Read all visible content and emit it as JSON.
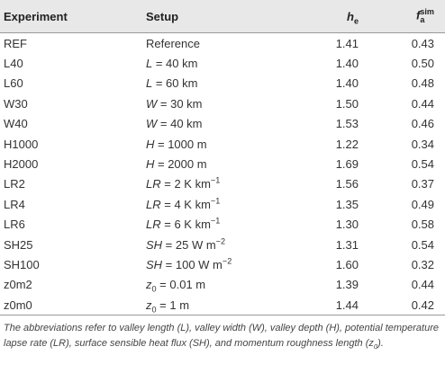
{
  "table": {
    "header": {
      "experiment": "Experiment",
      "setup": "Setup",
      "h_e": [
        {
          "italic": "h"
        },
        {
          "sub": "e"
        }
      ],
      "f_a_sim": [
        {
          "italic": "f"
        },
        {
          "sub": "a",
          "sup": "sim"
        }
      ]
    },
    "rows": [
      {
        "experiment": "REF",
        "setup": [
          {
            "text": "Reference"
          }
        ],
        "h_e": "1.41",
        "f_a_sim": "0.43"
      },
      {
        "experiment": "L40",
        "setup": [
          {
            "italic": "L"
          },
          {
            "text": " = 40 km"
          }
        ],
        "h_e": "1.40",
        "f_a_sim": "0.50"
      },
      {
        "experiment": "L60",
        "setup": [
          {
            "italic": "L"
          },
          {
            "text": " = 60 km"
          }
        ],
        "h_e": "1.40",
        "f_a_sim": "0.48"
      },
      {
        "experiment": "W30",
        "setup": [
          {
            "italic": "W"
          },
          {
            "text": " = 30 km"
          }
        ],
        "h_e": "1.50",
        "f_a_sim": "0.44"
      },
      {
        "experiment": "W40",
        "setup": [
          {
            "italic": "W"
          },
          {
            "text": " = 40 km"
          }
        ],
        "h_e": "1.53",
        "f_a_sim": "0.46"
      },
      {
        "experiment": "H1000",
        "setup": [
          {
            "italic": "H"
          },
          {
            "text": " = 1000 m"
          }
        ],
        "h_e": "1.22",
        "f_a_sim": "0.34"
      },
      {
        "experiment": "H2000",
        "setup": [
          {
            "italic": "H"
          },
          {
            "text": " = 2000 m"
          }
        ],
        "h_e": "1.69",
        "f_a_sim": "0.54"
      },
      {
        "experiment": "LR2",
        "setup": [
          {
            "italic": "LR"
          },
          {
            "text": " = 2 K km"
          },
          {
            "sup": "−1"
          }
        ],
        "h_e": "1.56",
        "f_a_sim": "0.37"
      },
      {
        "experiment": "LR4",
        "setup": [
          {
            "italic": "LR"
          },
          {
            "text": " = 4 K km"
          },
          {
            "sup": "−1"
          }
        ],
        "h_e": "1.35",
        "f_a_sim": "0.49"
      },
      {
        "experiment": "LR6",
        "setup": [
          {
            "italic": "LR"
          },
          {
            "text": " = 6 K km"
          },
          {
            "sup": "−1"
          }
        ],
        "h_e": "1.30",
        "f_a_sim": "0.58"
      },
      {
        "experiment": "SH25",
        "setup": [
          {
            "italic": "SH"
          },
          {
            "text": " = 25 W m"
          },
          {
            "sup": "−2"
          }
        ],
        "h_e": "1.31",
        "f_a_sim": "0.54"
      },
      {
        "experiment": "SH100",
        "setup": [
          {
            "italic": "SH"
          },
          {
            "text": " = 100 W m"
          },
          {
            "sup": "−2"
          }
        ],
        "h_e": "1.60",
        "f_a_sim": "0.32"
      },
      {
        "experiment": "z0m2",
        "setup": [
          {
            "italic": "z"
          },
          {
            "sub": "0"
          },
          {
            "text": " = 0.01 m"
          }
        ],
        "h_e": "1.39",
        "f_a_sim": "0.44"
      },
      {
        "experiment": "z0m0",
        "setup": [
          {
            "italic": "z"
          },
          {
            "sub": "0"
          },
          {
            "text": " = 1 m"
          }
        ],
        "h_e": "1.44",
        "f_a_sim": "0.42"
      }
    ],
    "footnote": [
      {
        "text": "The abbreviations refer to valley length (L), valley width (W), valley depth (H), potential temperature lapse rate (LR), surface sensible heat flux (SH), and momentum roughness length ("
      },
      {
        "text": "z"
      },
      {
        "sub": "0"
      },
      {
        "text": ")."
      }
    ]
  }
}
